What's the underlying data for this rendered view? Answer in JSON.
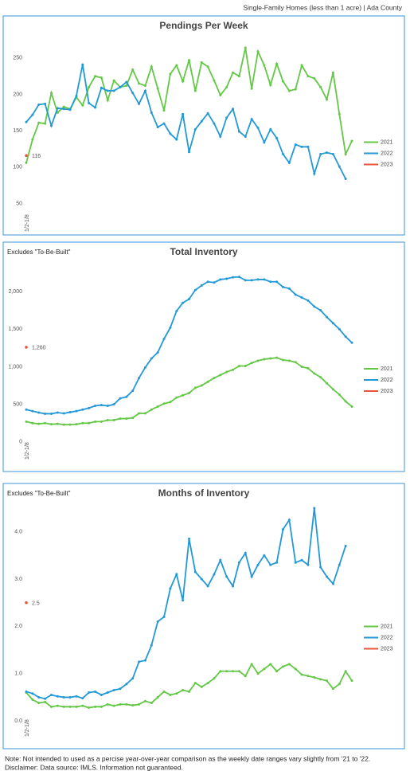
{
  "header": "Single-Family Homes (less than 1 acre) | Ada County",
  "footnote": [
    "Note: Not intended to used as a percise year-over-year comparison as the weekly date ranges vary slightly from '21 to '22.",
    "Disclaimer: Data source: IMLS. Information not guaranteed."
  ],
  "chart_data": [
    {
      "type": "line",
      "title": "Pendings Per Week",
      "legend": "right",
      "categories": [
        "1/2-1/8",
        null,
        null,
        null,
        null,
        null,
        null,
        null,
        null,
        null,
        null,
        null,
        null,
        null,
        null,
        null,
        null,
        null,
        null,
        null,
        null,
        null,
        null,
        null,
        null,
        null,
        null,
        null,
        null,
        null,
        null,
        null,
        null,
        null,
        null,
        null,
        null,
        null,
        null,
        null,
        null,
        null,
        null,
        null,
        null,
        null,
        null,
        null,
        null,
        null,
        null,
        null,
        null
      ],
      "ylim": [
        20,
        275
      ],
      "yticks": [
        50,
        100,
        150,
        200,
        250
      ],
      "series": [
        {
          "name": "2021",
          "color": "#62c845",
          "values": [
            106,
            138,
            161,
            160,
            202,
            175,
            183,
            180,
            196,
            185,
            210,
            225,
            223,
            192,
            219,
            210,
            212,
            234,
            215,
            212,
            238,
            208,
            178,
            228,
            240,
            218,
            247,
            205,
            244,
            238,
            219,
            199,
            210,
            230,
            225,
            264,
            208,
            259,
            240,
            213,
            242,
            218,
            205,
            207,
            240,
            225,
            222,
            210,
            193,
            230,
            173,
            118,
            136
          ]
        },
        {
          "name": "2022",
          "color": "#2299d6",
          "values": [
            162,
            172,
            186,
            187,
            157,
            181,
            180,
            179,
            198,
            241,
            188,
            182,
            209,
            205,
            205,
            210,
            217,
            202,
            187,
            205,
            175,
            155,
            160,
            146,
            138,
            173,
            121,
            152,
            163,
            174,
            160,
            142,
            168,
            180,
            149,
            142,
            166,
            154,
            134,
            152,
            140,
            118,
            106,
            131,
            128,
            128,
            91,
            118,
            120,
            118,
            101,
            84,
            null
          ]
        },
        {
          "name": "2023",
          "color": "#e8553a",
          "values": [
            116,
            null,
            null,
            null,
            null,
            null,
            null,
            null,
            null,
            null,
            null,
            null,
            null,
            null,
            null,
            null,
            null,
            null,
            null,
            null,
            null,
            null,
            null,
            null,
            null,
            null,
            null,
            null,
            null,
            null,
            null,
            null,
            null,
            null,
            null,
            null,
            null,
            null,
            null,
            null,
            null,
            null,
            null,
            null,
            null,
            null,
            null,
            null,
            null,
            null,
            null,
            null,
            null
          ]
        }
      ]
    },
    {
      "type": "line",
      "title": "Total Inventory",
      "subtitle": "Excludes \"To-Be-Built\"",
      "legend": "right",
      "categories": [
        "1/2-1/8",
        null,
        null,
        null,
        null,
        null,
        null,
        null,
        null,
        null,
        null,
        null,
        null,
        null,
        null,
        null,
        null,
        null,
        null,
        null,
        null,
        null,
        null,
        null,
        null,
        null,
        null,
        null,
        null,
        null,
        null,
        null,
        null,
        null,
        null,
        null,
        null,
        null,
        null,
        null,
        null,
        null,
        null,
        null,
        null,
        null,
        null,
        null,
        null,
        null,
        null,
        null,
        null
      ],
      "ylim": [
        -150,
        2350
      ],
      "yticks": [
        0,
        500,
        {
          "value": 1000,
          "label": "1,000"
        },
        {
          "value": 1500,
          "label": "1,500"
        },
        {
          "value": 2000,
          "label": "2,000"
        }
      ],
      "series": [
        {
          "name": "2021",
          "color": "#62c845",
          "values": [
            270,
            250,
            240,
            250,
            235,
            240,
            230,
            230,
            235,
            250,
            250,
            270,
            270,
            290,
            290,
            310,
            310,
            320,
            380,
            380,
            430,
            470,
            510,
            530,
            590,
            620,
            650,
            720,
            750,
            800,
            850,
            890,
            930,
            960,
            1010,
            1010,
            1050,
            1080,
            1100,
            1110,
            1120,
            1090,
            1080,
            1060,
            1000,
            980,
            910,
            860,
            780,
            700,
            630,
            540,
            470
          ]
        },
        {
          "name": "2022",
          "color": "#2299d6",
          "values": [
            430,
            410,
            390,
            375,
            375,
            390,
            380,
            395,
            410,
            430,
            450,
            480,
            490,
            480,
            500,
            580,
            600,
            680,
            850,
            990,
            1110,
            1190,
            1370,
            1520,
            1740,
            1850,
            1900,
            2020,
            2080,
            2130,
            2120,
            2160,
            2170,
            2190,
            2195,
            2150,
            2150,
            2160,
            2160,
            2130,
            2130,
            2060,
            2040,
            1960,
            1920,
            1880,
            1800,
            1750,
            1660,
            1580,
            1500,
            1400,
            1320
          ]
        },
        {
          "name": "2023",
          "color": "#e8553a",
          "values": [
            1260,
            null,
            null,
            null,
            null,
            null,
            null,
            null,
            null,
            null,
            null,
            null,
            null,
            null,
            null,
            null,
            null,
            null,
            null,
            null,
            null,
            null,
            null,
            null,
            null,
            null,
            null,
            null,
            null,
            null,
            null,
            null,
            null,
            null,
            null,
            null,
            null,
            null,
            null,
            null,
            null,
            null,
            null,
            null,
            null,
            null,
            null,
            null,
            null,
            null,
            null,
            null,
            null
          ],
          "value_labels": [
            "1,260",
            null,
            null,
            null,
            null,
            null,
            null,
            null,
            null,
            null,
            null,
            null,
            null,
            null,
            null,
            null,
            null,
            null,
            null,
            null,
            null,
            null,
            null,
            null,
            null,
            null,
            null,
            null,
            null,
            null,
            null,
            null,
            null,
            null,
            null,
            null,
            null,
            null,
            null,
            null,
            null,
            null,
            null,
            null,
            null,
            null,
            null,
            null,
            null,
            null,
            null,
            null,
            null
          ]
        }
      ]
    },
    {
      "type": "line",
      "title": "Months of Inventory",
      "subtitle": "Excludes \"To-Be-Built\"",
      "legend": "right",
      "categories": [
        "1/2-1/8",
        null,
        null,
        null,
        null,
        null,
        null,
        null,
        null,
        null,
        null,
        null,
        null,
        null,
        null,
        null,
        null,
        null,
        null,
        null,
        null,
        null,
        null,
        null,
        null,
        null,
        null,
        null,
        null,
        null,
        null,
        null,
        null,
        null,
        null,
        null,
        null,
        null,
        null,
        null,
        null,
        null,
        null,
        null,
        null,
        null,
        null,
        null,
        null,
        null,
        null,
        null,
        null
      ],
      "ylim": [
        -0.2,
        4.6
      ],
      "yticks": [
        {
          "value": 0,
          "label": "0.0"
        },
        {
          "value": 1,
          "label": "1.0"
        },
        {
          "value": 2,
          "label": "2.0"
        },
        {
          "value": 3,
          "label": "3.0"
        },
        {
          "value": 4,
          "label": "4.0"
        }
      ],
      "series": [
        {
          "name": "2021",
          "color": "#62c845",
          "values": [
            0.6,
            0.45,
            0.38,
            0.4,
            0.3,
            0.32,
            0.3,
            0.3,
            0.3,
            0.32,
            0.28,
            0.3,
            0.3,
            0.35,
            0.32,
            0.35,
            0.35,
            0.33,
            0.35,
            0.42,
            0.38,
            0.5,
            0.62,
            0.55,
            0.58,
            0.65,
            0.62,
            0.8,
            0.72,
            0.8,
            0.9,
            1.05,
            1.05,
            1.05,
            1.05,
            0.95,
            1.2,
            1.0,
            1.1,
            1.2,
            1.05,
            1.15,
            1.2,
            1.1,
            0.98,
            0.95,
            0.92,
            0.88,
            0.85,
            0.68,
            0.78,
            1.05,
            0.85
          ]
        },
        {
          "name": "2022",
          "color": "#2299d6",
          "values": [
            0.62,
            0.58,
            0.5,
            0.47,
            0.55,
            0.52,
            0.5,
            0.5,
            0.52,
            0.48,
            0.6,
            0.62,
            0.55,
            0.6,
            0.65,
            0.68,
            0.78,
            0.9,
            1.25,
            1.28,
            1.6,
            2.1,
            2.2,
            2.8,
            3.1,
            2.55,
            3.85,
            3.15,
            3.0,
            2.85,
            3.1,
            3.4,
            3.05,
            2.85,
            3.35,
            3.55,
            3.05,
            3.3,
            3.5,
            3.3,
            3.35,
            4.05,
            4.25,
            3.35,
            3.4,
            3.3,
            4.5,
            3.25,
            3.05,
            2.9,
            3.3,
            3.7,
            null
          ]
        },
        {
          "name": "2023",
          "color": "#e8553a",
          "values": [
            2.5,
            null,
            null,
            null,
            null,
            null,
            null,
            null,
            null,
            null,
            null,
            null,
            null,
            null,
            null,
            null,
            null,
            null,
            null,
            null,
            null,
            null,
            null,
            null,
            null,
            null,
            null,
            null,
            null,
            null,
            null,
            null,
            null,
            null,
            null,
            null,
            null,
            null,
            null,
            null,
            null,
            null,
            null,
            null,
            null,
            null,
            null,
            null,
            null,
            null,
            null,
            null,
            null
          ]
        }
      ]
    }
  ]
}
